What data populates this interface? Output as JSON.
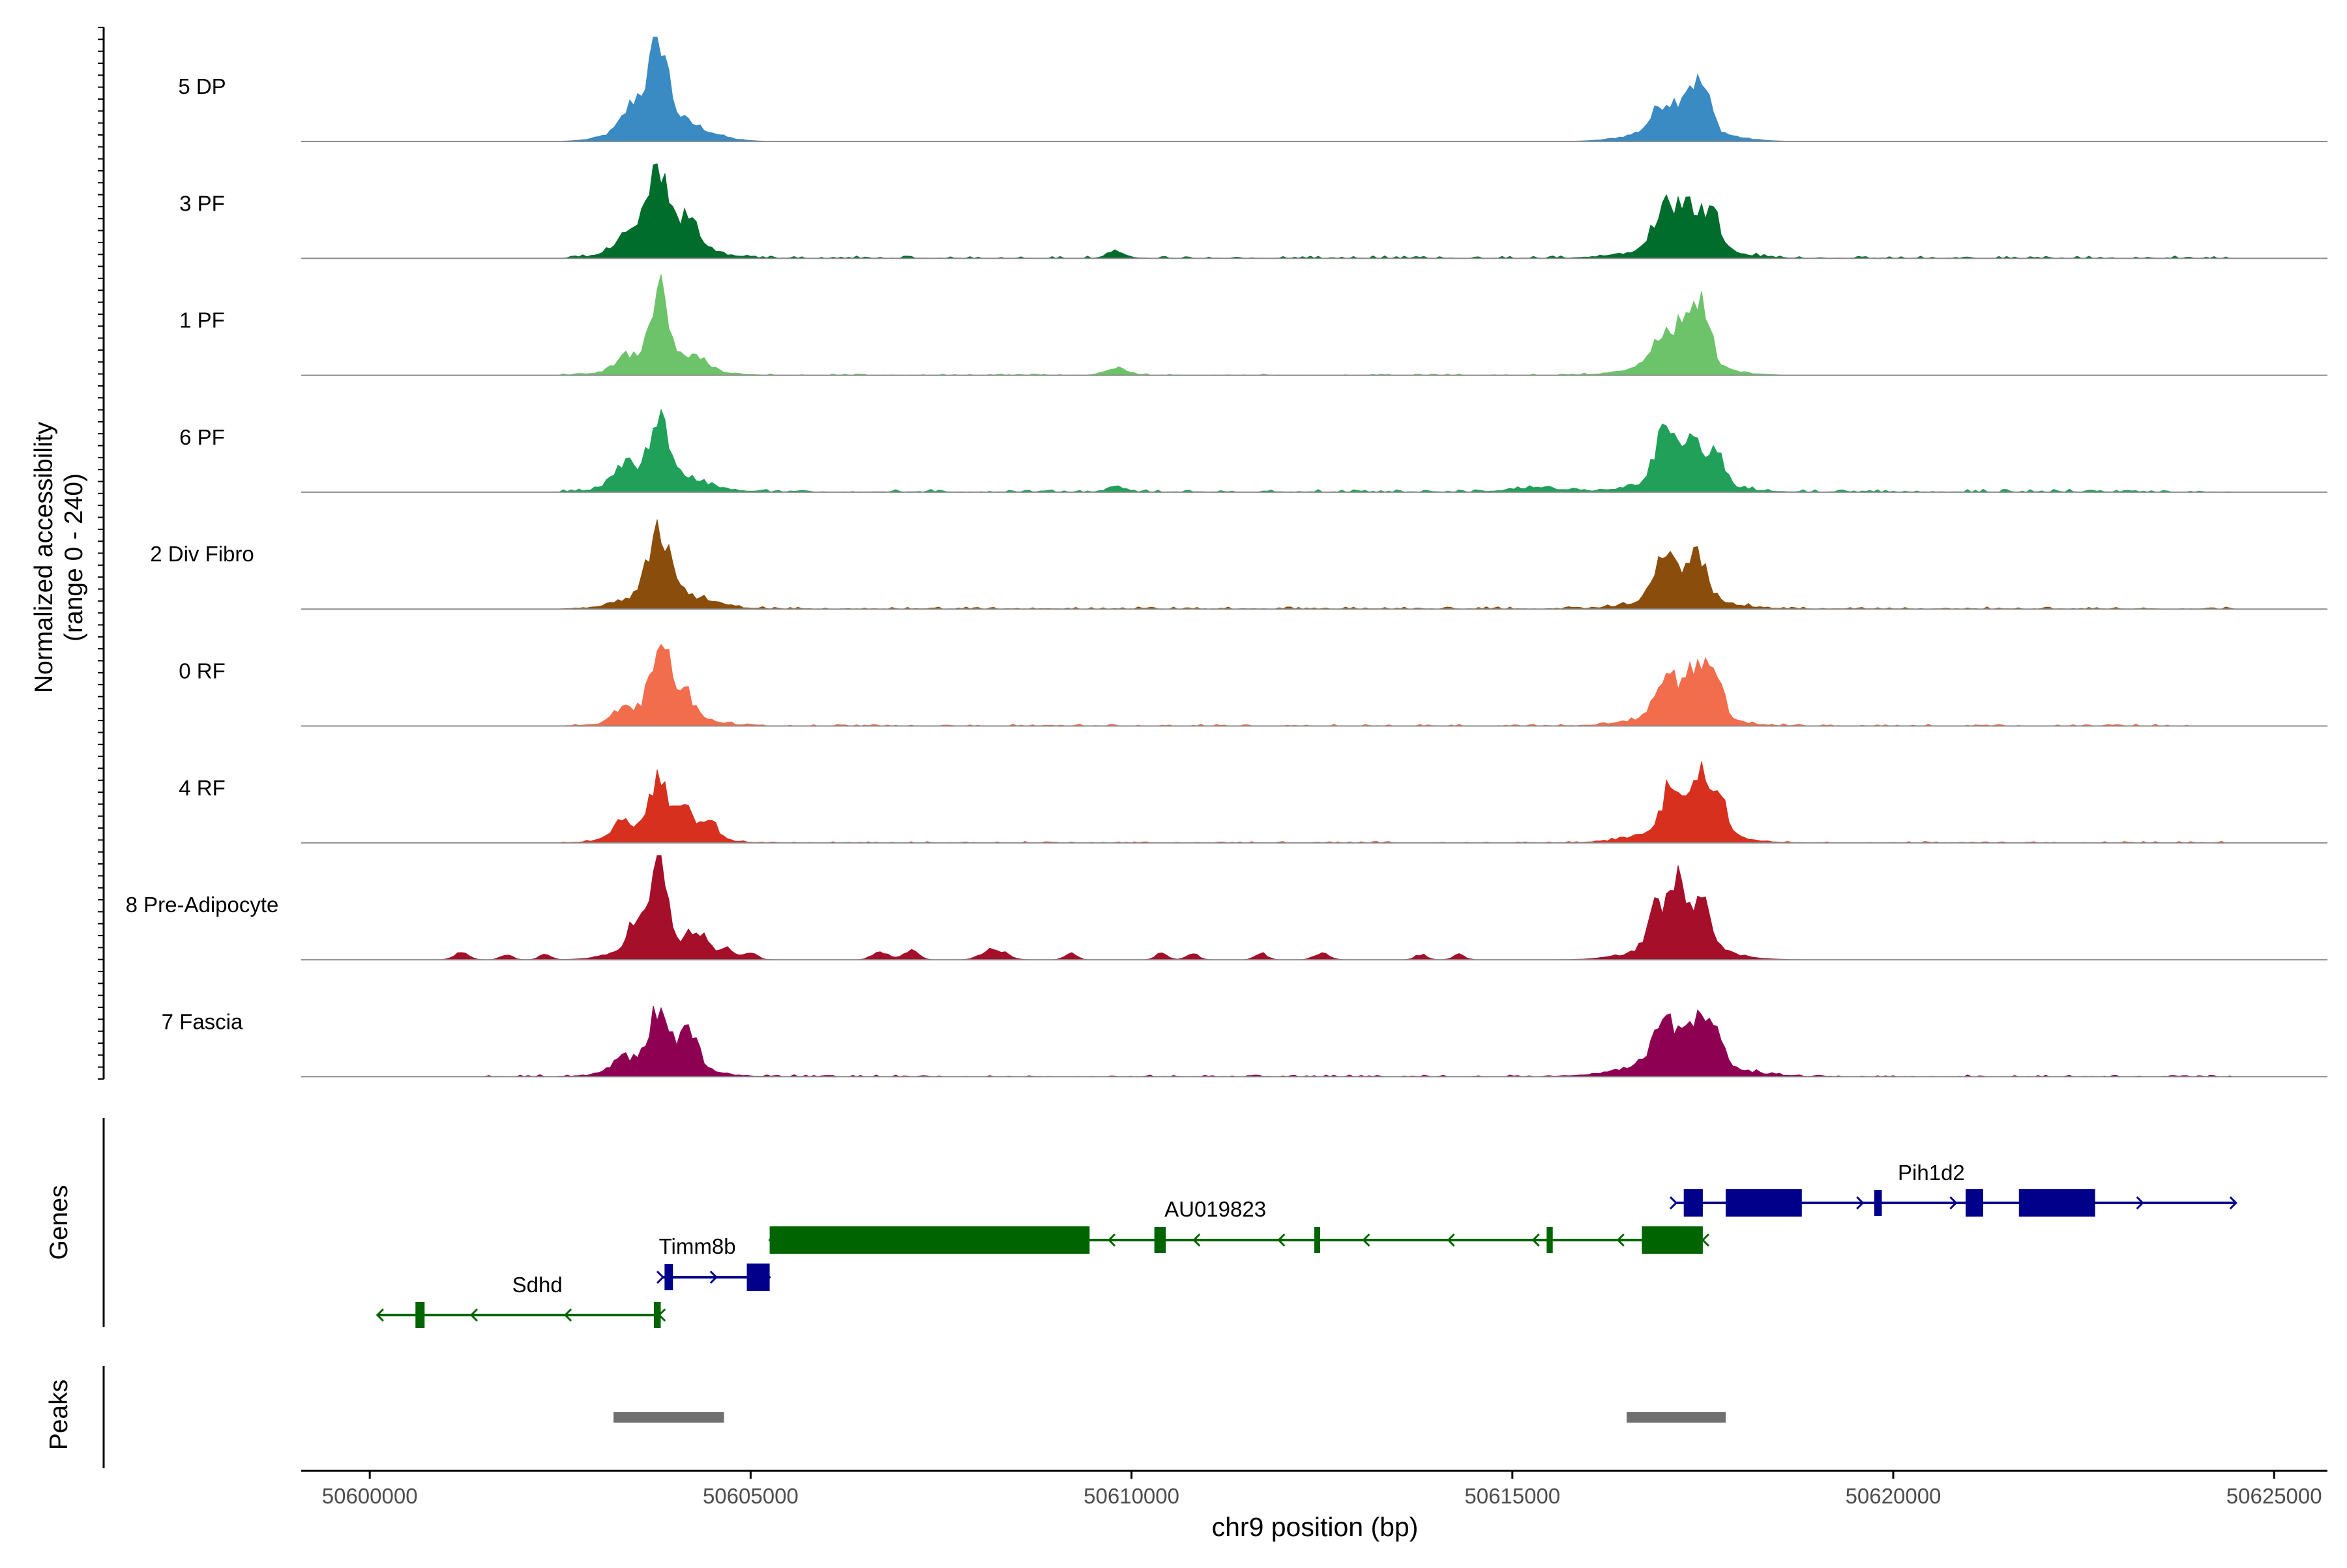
{
  "chart_data": {
    "type": "coverage-track",
    "x_axis": {
      "label": "chr9 position (bp)",
      "range": [
        50599100,
        50625700
      ],
      "ticks": [
        50600000,
        50605000,
        50610000,
        50615000,
        50620000,
        50625000
      ],
      "tick_labels": [
        "50600000",
        "50605000",
        "50610000",
        "50615000",
        "50620000",
        "50625000"
      ]
    },
    "coverage": {
      "y_label_line1": "Normalized accessibility",
      "y_label_line2": "(range 0 - 240)",
      "ylim": [
        0,
        240
      ],
      "tracks": [
        {
          "name": "5 DP",
          "color": "#3A8AC4",
          "peaks": [
            [
              50603800,
              175,
              110
            ],
            [
              50603850,
              60,
              450
            ],
            [
              50603500,
              55,
              150
            ],
            [
              50617000,
              60,
              150
            ],
            [
              50617300,
              70,
              100
            ],
            [
              50617500,
              90,
              110
            ],
            [
              50617200,
              35,
              500
            ]
          ],
          "noise": []
        },
        {
          "name": "3 PF",
          "color": "#006D2C",
          "peaks": [
            [
              50603800,
              150,
              110
            ],
            [
              50603850,
              50,
              450
            ],
            [
              50603500,
              40,
              180
            ],
            [
              50604200,
              60,
              120
            ],
            [
              50617000,
              90,
              150
            ],
            [
              50617300,
              100,
              110
            ],
            [
              50617600,
              95,
              110
            ],
            [
              50617200,
              30,
              550
            ],
            [
              50609800,
              14,
              120
            ]
          ],
          "noise": [
            [
              50602500,
              50624500,
              5
            ]
          ]
        },
        {
          "name": "1 PF",
          "color": "#6CC36A",
          "peaks": [
            [
              50603800,
              160,
              110
            ],
            [
              50603850,
              40,
              450
            ],
            [
              50603350,
              25,
              120
            ],
            [
              50604300,
              20,
              120
            ],
            [
              50617000,
              80,
              150
            ],
            [
              50617300,
              90,
              110
            ],
            [
              50617500,
              140,
              100
            ],
            [
              50617200,
              30,
              500
            ],
            [
              50609800,
              14,
              150
            ]
          ],
          "noise": [
            [
              50602500,
              50617800,
              3
            ]
          ]
        },
        {
          "name": "6 PF",
          "color": "#21A05A",
          "peaks": [
            [
              50603800,
              150,
              110
            ],
            [
              50603850,
              45,
              450
            ],
            [
              50603350,
              40,
              150
            ],
            [
              50617000,
              110,
              130
            ],
            [
              50617350,
              85,
              120
            ],
            [
              50617650,
              80,
              110
            ],
            [
              50617200,
              30,
              500
            ],
            [
              50609800,
              12,
              120
            ],
            [
              50615300,
              10,
              300
            ]
          ],
          "noise": [
            [
              50602500,
              50624500,
              6
            ]
          ]
        },
        {
          "name": "2 Div Fibro",
          "color": "#8B4D0B",
          "peaks": [
            [
              50603800,
              140,
              150
            ],
            [
              50603900,
              40,
              450
            ],
            [
              50617000,
              90,
              140
            ],
            [
              50617400,
              110,
              130
            ],
            [
              50617200,
              30,
              500
            ]
          ],
          "noise": [
            [
              50602500,
              50624500,
              5
            ]
          ]
        },
        {
          "name": "0 RF",
          "color": "#F26D4C",
          "peaks": [
            [
              50603800,
              160,
              120
            ],
            [
              50604100,
              60,
              130
            ],
            [
              50603350,
              30,
              120
            ],
            [
              50603850,
              30,
              450
            ],
            [
              50617050,
              90,
              140
            ],
            [
              50617400,
              95,
              120
            ],
            [
              50617650,
              120,
              100
            ],
            [
              50617200,
              30,
              500
            ]
          ],
          "noise": [
            [
              50602500,
              50624000,
              4
            ]
          ]
        },
        {
          "name": "4 RF",
          "color": "#D7301F",
          "peaks": [
            [
              50603800,
              130,
              110
            ],
            [
              50604150,
              50,
              100
            ],
            [
              50604450,
              40,
              110
            ],
            [
              50603300,
              30,
              120
            ],
            [
              50603850,
              35,
              450
            ],
            [
              50617100,
              110,
              110
            ],
            [
              50617450,
              120,
              100
            ],
            [
              50617700,
              120,
              90
            ],
            [
              50617250,
              40,
              500
            ]
          ],
          "noise": [
            [
              50602500,
              50624500,
              3
            ]
          ]
        },
        {
          "name": "8 Pre-Adipocyte",
          "color": "#A50F2A",
          "peaks": [
            [
              50603800,
              210,
              90
            ],
            [
              50603500,
              60,
              120
            ],
            [
              50604300,
              40,
              120
            ],
            [
              50604700,
              20,
              80
            ],
            [
              50605000,
              15,
              80
            ],
            [
              50603850,
              45,
              450
            ],
            [
              50616900,
              100,
              110
            ],
            [
              50617200,
              140,
              110
            ],
            [
              50617500,
              120,
              110
            ],
            [
              50617200,
              40,
              500
            ],
            [
              50601200,
              15,
              100
            ],
            [
              50601800,
              12,
              80
            ],
            [
              50602300,
              12,
              80
            ],
            [
              50606700,
              20,
              100
            ],
            [
              50607100,
              20,
              100
            ],
            [
              50608200,
              25,
              150
            ],
            [
              50609200,
              15,
              80
            ],
            [
              50610400,
              15,
              80
            ],
            [
              50610800,
              15,
              80
            ],
            [
              50611700,
              15,
              80
            ],
            [
              50612500,
              15,
              100
            ],
            [
              50613800,
              12,
              80
            ],
            [
              50614300,
              12,
              80
            ]
          ],
          "noise": []
        },
        {
          "name": "7 Fascia",
          "color": "#8E0152",
          "peaks": [
            [
              50603800,
              120,
              130
            ],
            [
              50604200,
              80,
              110
            ],
            [
              50603300,
              25,
              150
            ],
            [
              50603850,
              35,
              450
            ],
            [
              50617000,
              110,
              140
            ],
            [
              50617400,
              90,
              110
            ],
            [
              50617650,
              110,
              90
            ],
            [
              50617200,
              40,
              600
            ]
          ],
          "noise": [
            [
              50601500,
              50624500,
              4
            ]
          ]
        }
      ]
    },
    "genes": {
      "y_label": "Genes",
      "items": [
        {
          "name": "Sdhd",
          "strand": "-",
          "color": "#006400",
          "start": 50600100,
          "end": 50603800,
          "exons": [
            [
              50600600,
              50600720
            ],
            [
              50603730,
              50603820
            ]
          ]
        },
        {
          "name": "Timm8b",
          "strand": "+",
          "color": "#00008B",
          "start": 50603850,
          "end": 50605250,
          "exons": [
            [
              50603870,
              50603980
            ],
            [
              50604950,
              50605250
            ]
          ]
        },
        {
          "name": "AU019823",
          "strand": "-",
          "color": "#006400",
          "start": 50605250,
          "end": 50617500,
          "exons": [
            [
              50605250,
              50609450
            ],
            [
              50610300,
              50610450
            ],
            [
              50612400,
              50612470
            ],
            [
              50615450,
              50615530
            ],
            [
              50616700,
              50617500
            ]
          ]
        },
        {
          "name": "Pih1d2",
          "strand": "+",
          "color": "#00008B",
          "start": 50617150,
          "end": 50624500,
          "exons": [
            [
              50617250,
              50617500
            ],
            [
              50617800,
              50618800
            ],
            [
              50619750,
              50619850
            ],
            [
              50620950,
              50621180
            ],
            [
              50621650,
              50622650
            ]
          ]
        }
      ]
    },
    "peaks": {
      "y_label": "Peaks",
      "color": "#707070",
      "regions": [
        [
          50603200,
          50604650
        ],
        [
          50616500,
          50617800
        ]
      ]
    }
  }
}
